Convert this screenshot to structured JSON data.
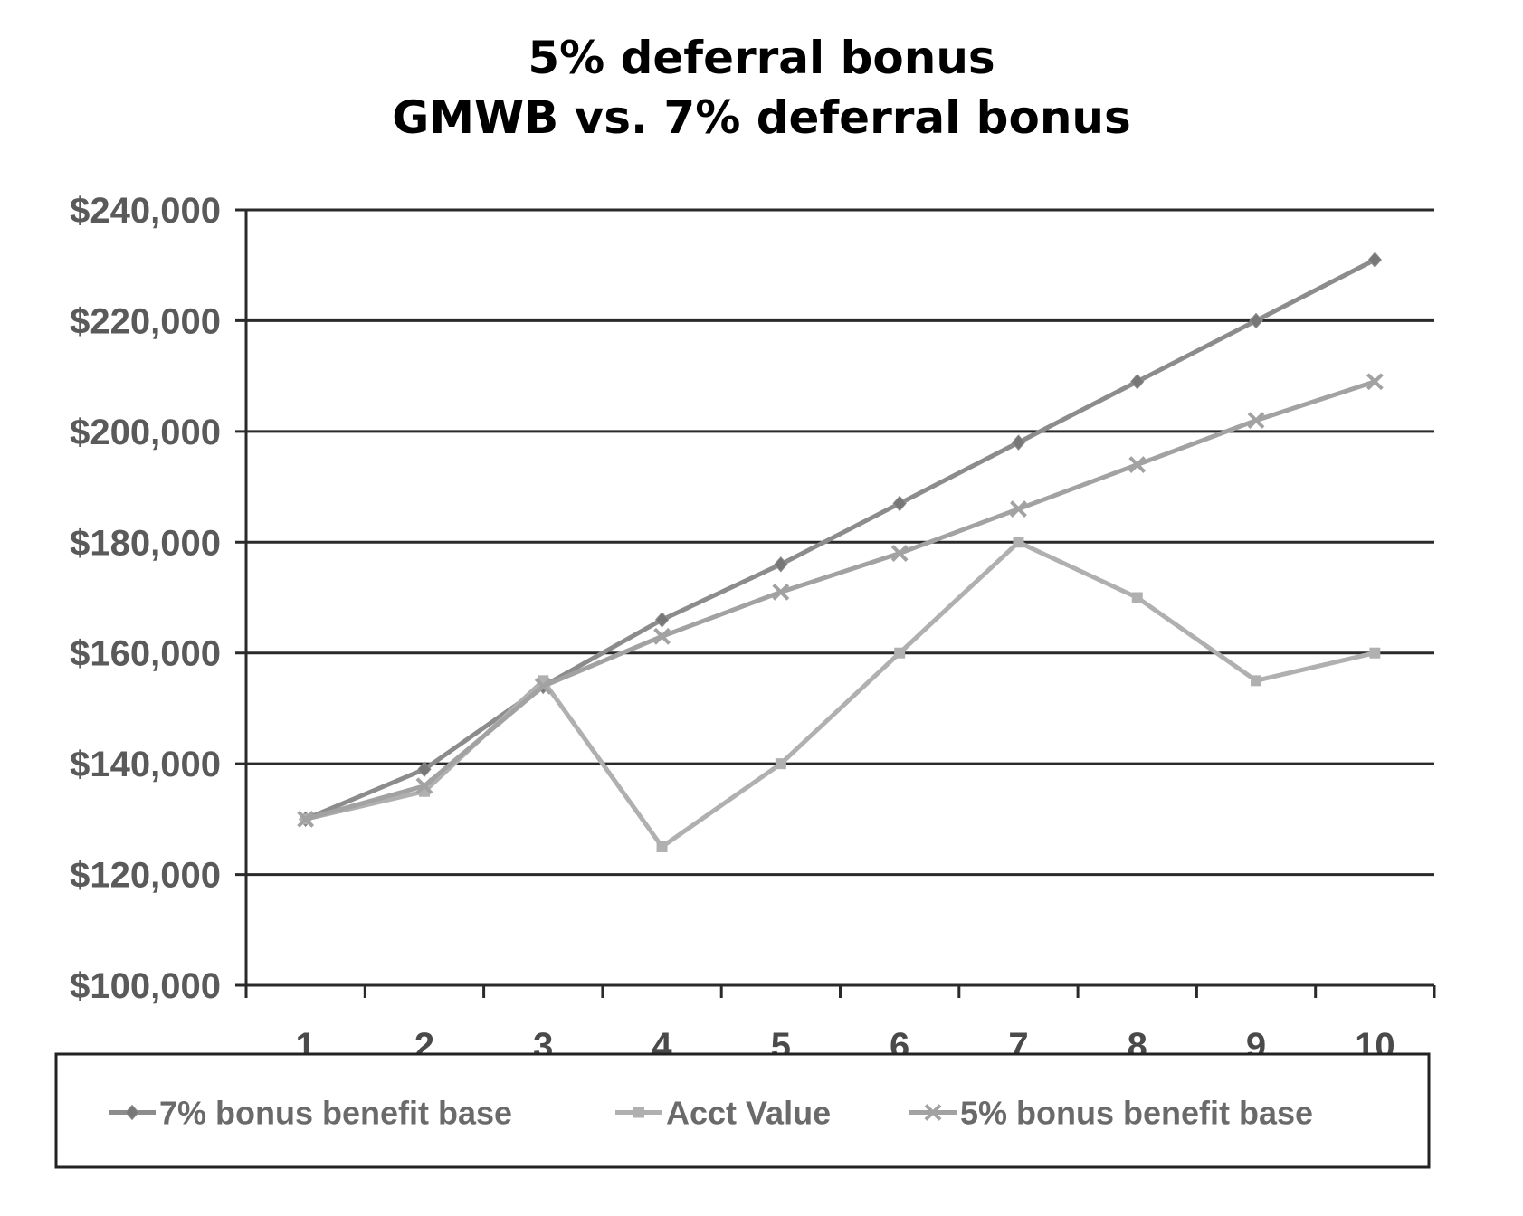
{
  "chart_data": {
    "type": "line",
    "title": "5% deferral bonus",
    "subtitle": "GMWB vs. 7% deferral bonus",
    "xlabel": "",
    "ylabel": "",
    "categories": [
      "1",
      "2",
      "3",
      "4",
      "5",
      "6",
      "7",
      "8",
      "9",
      "10"
    ],
    "yticks": [
      "$100,000",
      "$120,000",
      "$140,000",
      "$160,000",
      "$180,000",
      "$200,000",
      "$220,000",
      "$240,000"
    ],
    "ylim": [
      100000,
      240000
    ],
    "grid": true,
    "legend_position": "bottom",
    "series": [
      {
        "name": "7% bonus benefit base",
        "color": "#8c8c8c",
        "marker": "diamond",
        "values": [
          130000,
          139000,
          154000,
          166000,
          176000,
          187000,
          198000,
          209000,
          220000,
          231000
        ]
      },
      {
        "name": "Acct Value",
        "color": "#b0b0b0",
        "marker": "square",
        "values": [
          130000,
          135000,
          155000,
          125000,
          140000,
          160000,
          180000,
          170000,
          155000,
          160000
        ]
      },
      {
        "name": "5%  bonus benefit  base",
        "color": "#a2a2a2",
        "marker": "x",
        "values": [
          130000,
          136000,
          154000,
          163000,
          171000,
          178000,
          186000,
          194000,
          202000,
          209000
        ]
      }
    ]
  }
}
